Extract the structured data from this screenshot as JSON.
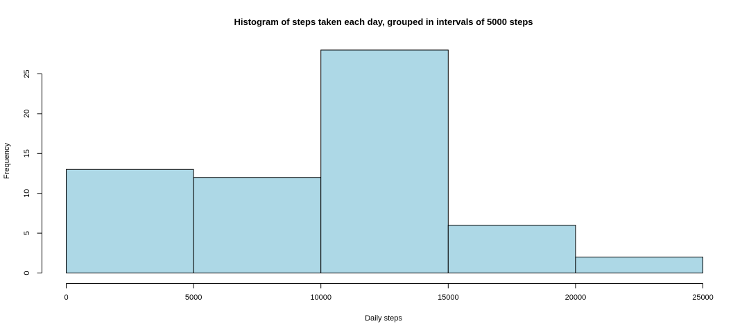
{
  "chart_data": {
    "type": "bar",
    "title": "Histogram of steps taken each day, grouped in intervals of 5000 steps",
    "xlabel": "Daily steps",
    "ylabel": "Frequency",
    "bin_edges": [
      0,
      5000,
      10000,
      15000,
      20000,
      25000
    ],
    "values": [
      13,
      12,
      28,
      6,
      2
    ],
    "xlim": [
      0,
      25000
    ],
    "ylim": [
      0,
      28
    ],
    "x_ticks": [
      0,
      5000,
      10000,
      15000,
      20000,
      25000
    ],
    "x_tick_labels": [
      "0",
      "5000",
      "10000",
      "15000",
      "20000",
      "25000"
    ],
    "y_ticks": [
      0,
      5,
      10,
      15,
      20,
      25
    ],
    "y_tick_labels": [
      "0",
      "5",
      "10",
      "15",
      "20",
      "25"
    ],
    "bar_color": "#add8e6",
    "grid": false,
    "legend": "none"
  }
}
